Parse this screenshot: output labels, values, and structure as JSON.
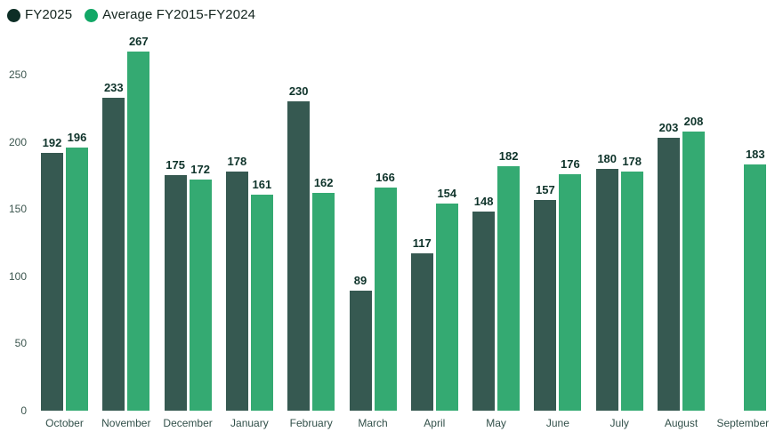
{
  "legend": [
    {
      "label": "FY2025",
      "color": "#0d2e26"
    },
    {
      "label": "Average FY2015-FY2024",
      "color": "#12a766"
    }
  ],
  "chart_data": {
    "type": "bar",
    "title": "",
    "xlabel": "",
    "ylabel": "",
    "categories": [
      "October",
      "November",
      "December",
      "January",
      "February",
      "March",
      "April",
      "May",
      "June",
      "July",
      "August",
      "September"
    ],
    "series": [
      {
        "name": "FY2025",
        "color": "#365951",
        "values": [
          192,
          233,
          175,
          178,
          230,
          89,
          117,
          148,
          157,
          180,
          203,
          null
        ]
      },
      {
        "name": "Average FY2015-FY2024",
        "color": "#34aa72",
        "values": [
          196,
          267,
          172,
          161,
          162,
          166,
          154,
          182,
          176,
          178,
          208,
          183
        ]
      }
    ],
    "yticks": [
      0,
      50,
      100,
      150,
      200,
      250
    ],
    "ylim": [
      0,
      275
    ],
    "grid": false,
    "axis_lines": false,
    "legend_position": "top-left",
    "value_labels": true
  }
}
